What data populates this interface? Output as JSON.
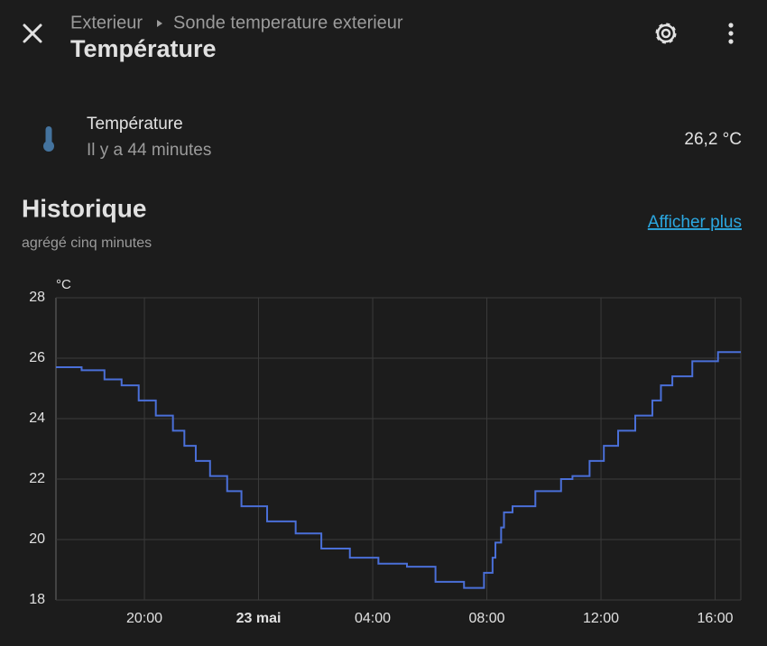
{
  "header": {
    "breadcrumb": [
      "Exterieur",
      "Sonde temperature exterieur"
    ],
    "title": "Température"
  },
  "entity": {
    "name": "Température",
    "last_changed": "Il y a 44 minutes",
    "state": "26,2 °C"
  },
  "history": {
    "title": "Historique",
    "subtitle": "agrégé cinq minutes",
    "link": "Afficher plus"
  },
  "chart_data": {
    "type": "line",
    "step": true,
    "y_label": "°C",
    "color": "#4a6fd8",
    "grid": true,
    "x": [
      16.9,
      17.8,
      18.6,
      19.2,
      19.8,
      20.4,
      21.0,
      21.4,
      21.8,
      22.3,
      22.9,
      23.4,
      24.3,
      25.3,
      26.2,
      27.2,
      28.2,
      29.2,
      30.2,
      31.2,
      31.9,
      32.2,
      32.3,
      32.5,
      32.6,
      32.9,
      33.7,
      34.6,
      35.0,
      35.6,
      36.1,
      36.6,
      37.2,
      37.8,
      38.1,
      38.5,
      39.2,
      40.1,
      40.9
    ],
    "values": [
      25.7,
      25.6,
      25.3,
      25.1,
      24.6,
      24.1,
      23.6,
      23.1,
      22.6,
      22.1,
      21.6,
      21.1,
      20.6,
      20.2,
      19.7,
      19.4,
      19.2,
      19.1,
      18.6,
      18.4,
      18.9,
      19.4,
      19.9,
      20.4,
      20.9,
      21.1,
      21.6,
      22.0,
      22.1,
      22.6,
      23.1,
      23.6,
      24.1,
      24.6,
      25.1,
      25.4,
      25.9,
      26.2,
      26.2
    ],
    "xlim": [
      16.9,
      40.9
    ],
    "xticks": [
      {
        "value": 20,
        "label": "20:00"
      },
      {
        "value": 24,
        "label": "23 mai"
      },
      {
        "value": 28,
        "label": "04:00"
      },
      {
        "value": 32,
        "label": "08:00"
      },
      {
        "value": 36,
        "label": "12:00"
      },
      {
        "value": 40,
        "label": "16:00"
      }
    ],
    "ylim": [
      18,
      28
    ],
    "yticks": [
      18,
      20,
      22,
      24,
      26,
      28
    ]
  }
}
